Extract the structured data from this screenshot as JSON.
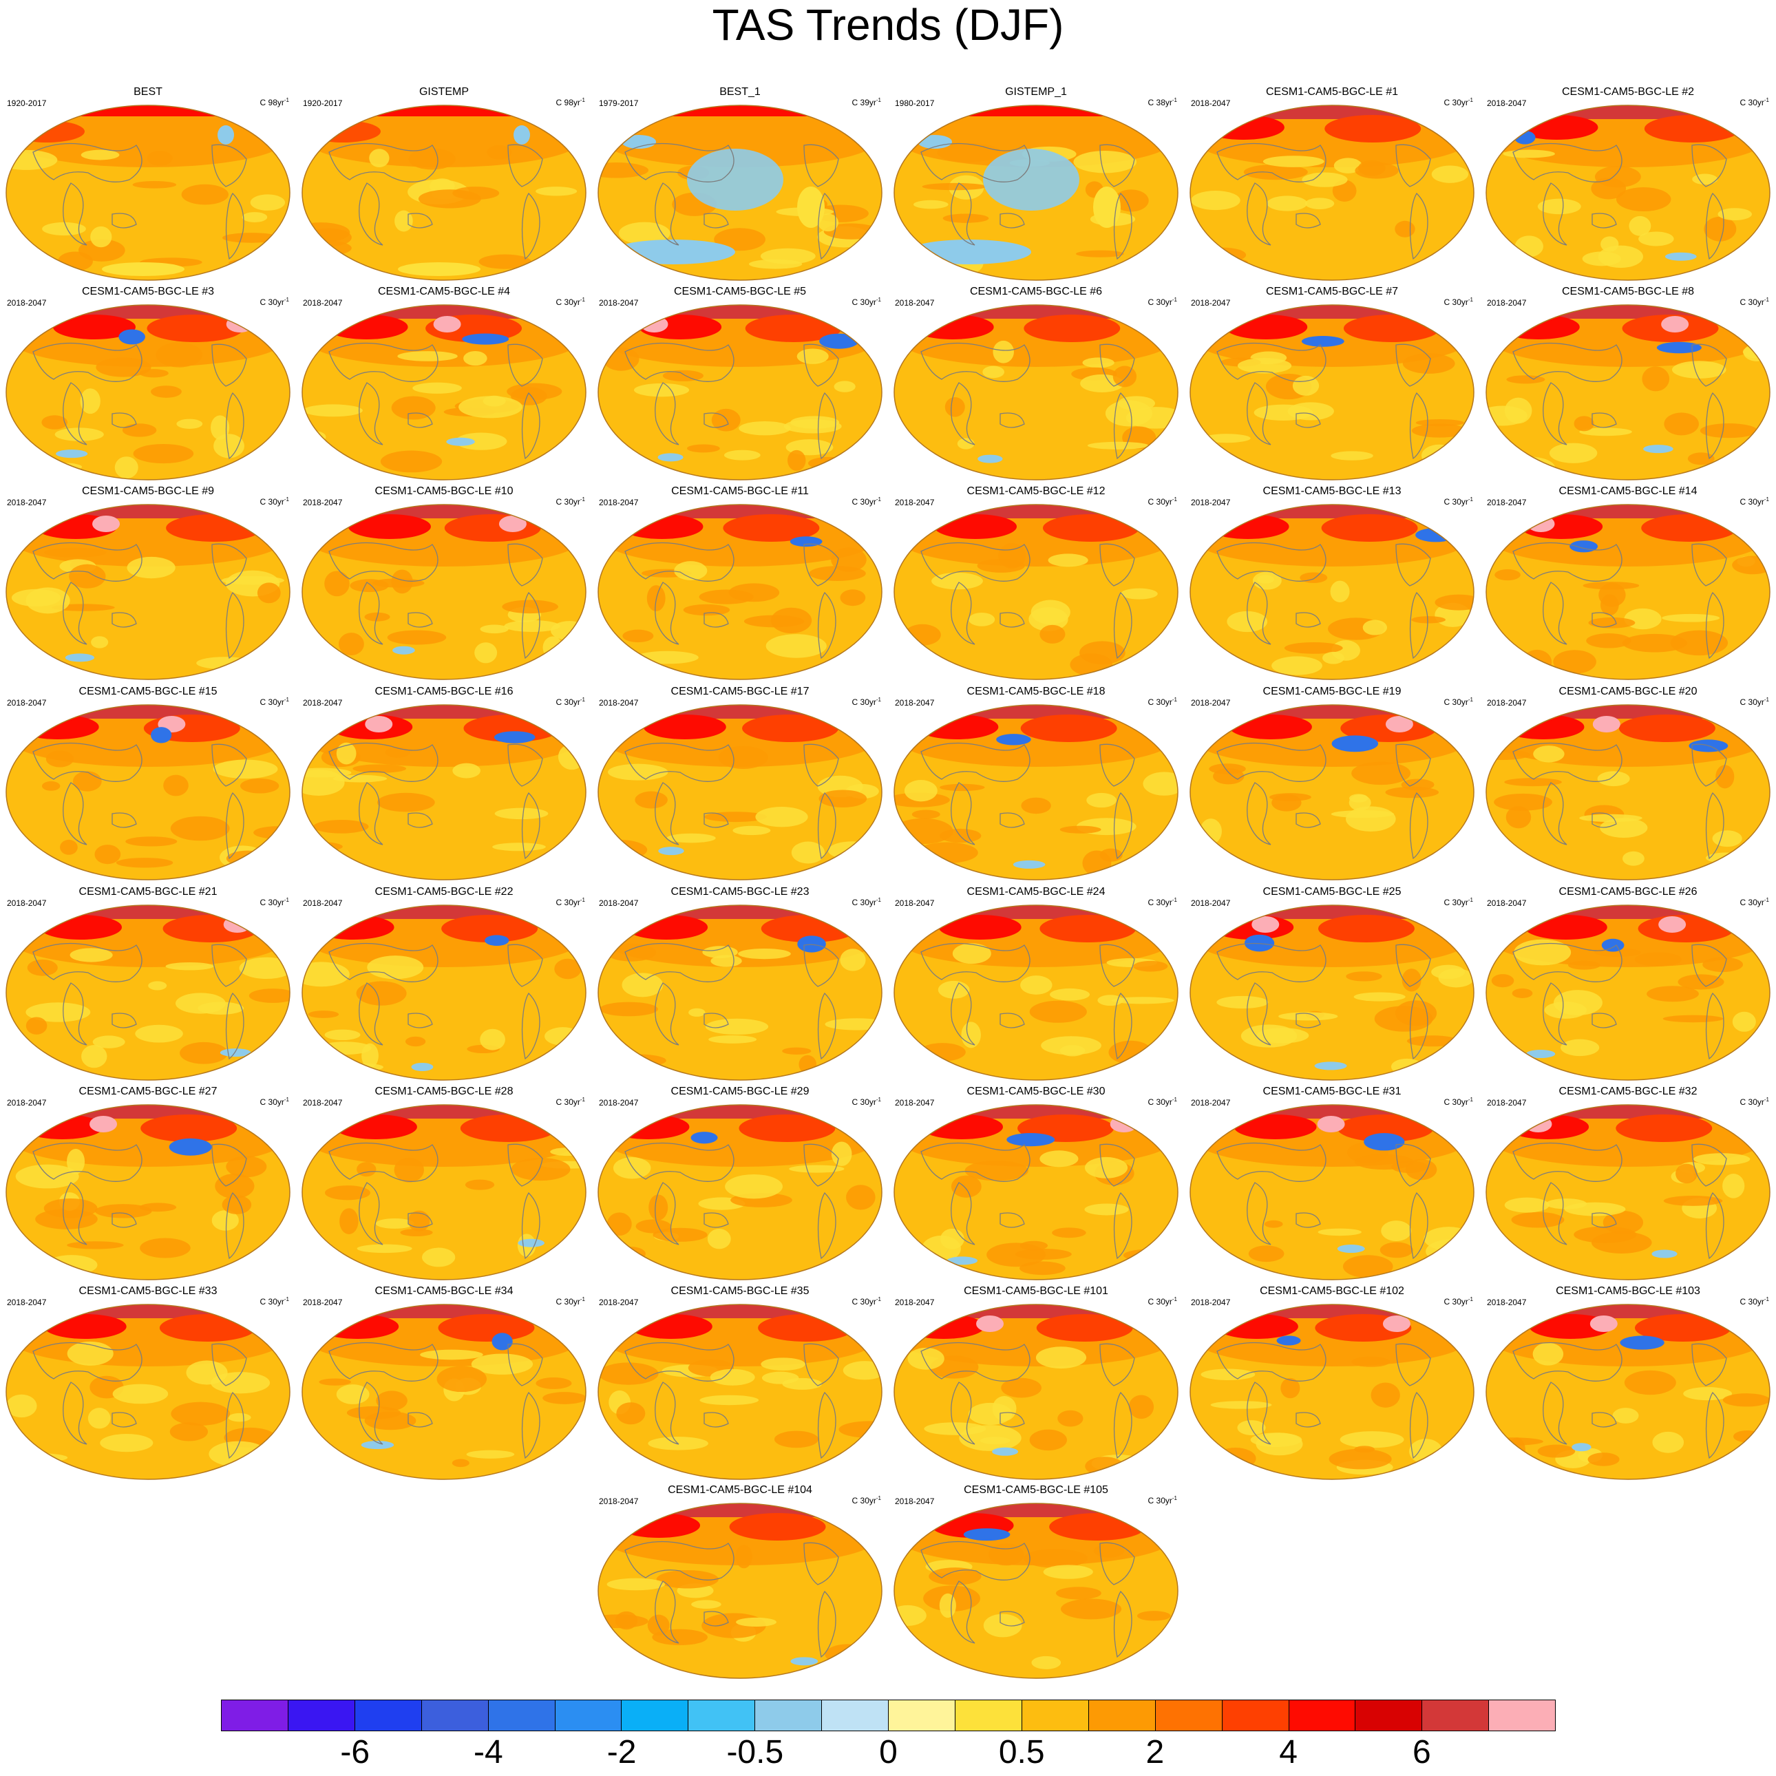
{
  "title": "TAS Trends (DJF)",
  "panels": [
    {
      "title": "BEST",
      "period": "1920-2017",
      "unit": "C 98yr",
      "unit_exp": "-1",
      "pattern": "obs_long"
    },
    {
      "title": "GISTEMP",
      "period": "1920-2017",
      "unit": "C 98yr",
      "unit_exp": "-1",
      "pattern": "obs_long"
    },
    {
      "title": "BEST_1",
      "period": "1979-2017",
      "unit": "C 39yr",
      "unit_exp": "-1",
      "pattern": "obs_short"
    },
    {
      "title": "GISTEMP_1",
      "period": "1980-2017",
      "unit": "C 38yr",
      "unit_exp": "-1",
      "pattern": "obs_short"
    },
    {
      "title": "CESM1-CAM5-BGC-LE #1",
      "period": "2018-2047",
      "unit": "C 30yr",
      "unit_exp": "-1",
      "pattern": "model"
    },
    {
      "title": "CESM1-CAM5-BGC-LE #2",
      "period": "2018-2047",
      "unit": "C 30yr",
      "unit_exp": "-1",
      "pattern": "model"
    },
    {
      "title": "CESM1-CAM5-BGC-LE #3",
      "period": "2018-2047",
      "unit": "C 30yr",
      "unit_exp": "-1",
      "pattern": "model"
    },
    {
      "title": "CESM1-CAM5-BGC-LE #4",
      "period": "2018-2047",
      "unit": "C 30yr",
      "unit_exp": "-1",
      "pattern": "model"
    },
    {
      "title": "CESM1-CAM5-BGC-LE #5",
      "period": "2018-2047",
      "unit": "C 30yr",
      "unit_exp": "-1",
      "pattern": "model"
    },
    {
      "title": "CESM1-CAM5-BGC-LE #6",
      "period": "2018-2047",
      "unit": "C 30yr",
      "unit_exp": "-1",
      "pattern": "model"
    },
    {
      "title": "CESM1-CAM5-BGC-LE #7",
      "period": "2018-2047",
      "unit": "C 30yr",
      "unit_exp": "-1",
      "pattern": "model"
    },
    {
      "title": "CESM1-CAM5-BGC-LE #8",
      "period": "2018-2047",
      "unit": "C 30yr",
      "unit_exp": "-1",
      "pattern": "model"
    },
    {
      "title": "CESM1-CAM5-BGC-LE #9",
      "period": "2018-2047",
      "unit": "C 30yr",
      "unit_exp": "-1",
      "pattern": "model"
    },
    {
      "title": "CESM1-CAM5-BGC-LE #10",
      "period": "2018-2047",
      "unit": "C 30yr",
      "unit_exp": "-1",
      "pattern": "model"
    },
    {
      "title": "CESM1-CAM5-BGC-LE #11",
      "period": "2018-2047",
      "unit": "C 30yr",
      "unit_exp": "-1",
      "pattern": "model"
    },
    {
      "title": "CESM1-CAM5-BGC-LE #12",
      "period": "2018-2047",
      "unit": "C 30yr",
      "unit_exp": "-1",
      "pattern": "model"
    },
    {
      "title": "CESM1-CAM5-BGC-LE #13",
      "period": "2018-2047",
      "unit": "C 30yr",
      "unit_exp": "-1",
      "pattern": "model"
    },
    {
      "title": "CESM1-CAM5-BGC-LE #14",
      "period": "2018-2047",
      "unit": "C 30yr",
      "unit_exp": "-1",
      "pattern": "model"
    },
    {
      "title": "CESM1-CAM5-BGC-LE #15",
      "period": "2018-2047",
      "unit": "C 30yr",
      "unit_exp": "-1",
      "pattern": "model"
    },
    {
      "title": "CESM1-CAM5-BGC-LE #16",
      "period": "2018-2047",
      "unit": "C 30yr",
      "unit_exp": "-1",
      "pattern": "model"
    },
    {
      "title": "CESM1-CAM5-BGC-LE #17",
      "period": "2018-2047",
      "unit": "C 30yr",
      "unit_exp": "-1",
      "pattern": "model"
    },
    {
      "title": "CESM1-CAM5-BGC-LE #18",
      "period": "2018-2047",
      "unit": "C 30yr",
      "unit_exp": "-1",
      "pattern": "model"
    },
    {
      "title": "CESM1-CAM5-BGC-LE #19",
      "period": "2018-2047",
      "unit": "C 30yr",
      "unit_exp": "-1",
      "pattern": "model"
    },
    {
      "title": "CESM1-CAM5-BGC-LE #20",
      "period": "2018-2047",
      "unit": "C 30yr",
      "unit_exp": "-1",
      "pattern": "model"
    },
    {
      "title": "CESM1-CAM5-BGC-LE #21",
      "period": "2018-2047",
      "unit": "C 30yr",
      "unit_exp": "-1",
      "pattern": "model"
    },
    {
      "title": "CESM1-CAM5-BGC-LE #22",
      "period": "2018-2047",
      "unit": "C 30yr",
      "unit_exp": "-1",
      "pattern": "model"
    },
    {
      "title": "CESM1-CAM5-BGC-LE #23",
      "period": "2018-2047",
      "unit": "C 30yr",
      "unit_exp": "-1",
      "pattern": "model"
    },
    {
      "title": "CESM1-CAM5-BGC-LE #24",
      "period": "2018-2047",
      "unit": "C 30yr",
      "unit_exp": "-1",
      "pattern": "model"
    },
    {
      "title": "CESM1-CAM5-BGC-LE #25",
      "period": "2018-2047",
      "unit": "C 30yr",
      "unit_exp": "-1",
      "pattern": "model"
    },
    {
      "title": "CESM1-CAM5-BGC-LE #26",
      "period": "2018-2047",
      "unit": "C 30yr",
      "unit_exp": "-1",
      "pattern": "model"
    },
    {
      "title": "CESM1-CAM5-BGC-LE #27",
      "period": "2018-2047",
      "unit": "C 30yr",
      "unit_exp": "-1",
      "pattern": "model"
    },
    {
      "title": "CESM1-CAM5-BGC-LE #28",
      "period": "2018-2047",
      "unit": "C 30yr",
      "unit_exp": "-1",
      "pattern": "model"
    },
    {
      "title": "CESM1-CAM5-BGC-LE #29",
      "period": "2018-2047",
      "unit": "C 30yr",
      "unit_exp": "-1",
      "pattern": "model"
    },
    {
      "title": "CESM1-CAM5-BGC-LE #30",
      "period": "2018-2047",
      "unit": "C 30yr",
      "unit_exp": "-1",
      "pattern": "model"
    },
    {
      "title": "CESM1-CAM5-BGC-LE #31",
      "period": "2018-2047",
      "unit": "C 30yr",
      "unit_exp": "-1",
      "pattern": "model"
    },
    {
      "title": "CESM1-CAM5-BGC-LE #32",
      "period": "2018-2047",
      "unit": "C 30yr",
      "unit_exp": "-1",
      "pattern": "model"
    },
    {
      "title": "CESM1-CAM5-BGC-LE #33",
      "period": "2018-2047",
      "unit": "C 30yr",
      "unit_exp": "-1",
      "pattern": "model"
    },
    {
      "title": "CESM1-CAM5-BGC-LE #34",
      "period": "2018-2047",
      "unit": "C 30yr",
      "unit_exp": "-1",
      "pattern": "model"
    },
    {
      "title": "CESM1-CAM5-BGC-LE #35",
      "period": "2018-2047",
      "unit": "C 30yr",
      "unit_exp": "-1",
      "pattern": "model"
    },
    {
      "title": "CESM1-CAM5-BGC-LE #101",
      "period": "2018-2047",
      "unit": "C 30yr",
      "unit_exp": "-1",
      "pattern": "model"
    },
    {
      "title": "CESM1-CAM5-BGC-LE #102",
      "period": "2018-2047",
      "unit": "C 30yr",
      "unit_exp": "-1",
      "pattern": "model"
    },
    {
      "title": "CESM1-CAM5-BGC-LE #103",
      "period": "2018-2047",
      "unit": "C 30yr",
      "unit_exp": "-1",
      "pattern": "model"
    },
    {
      "title": "CESM1-CAM5-BGC-LE #104",
      "period": "2018-2047",
      "unit": "C 30yr",
      "unit_exp": "-1",
      "pattern": "model"
    },
    {
      "title": "CESM1-CAM5-BGC-LE #105",
      "period": "2018-2047",
      "unit": "C 30yr",
      "unit_exp": "-1",
      "pattern": "model"
    }
  ],
  "colorbar": {
    "colors": [
      "#7f1de6",
      "#3a16f2",
      "#1f3ff0",
      "#3c5fdd",
      "#2f73e8",
      "#2b8ef2",
      "#0aaff7",
      "#41c2f5",
      "#8ecbea",
      "#bfe2f5",
      "#fff49a",
      "#fde13a",
      "#fdbd10",
      "#fd9a04",
      "#fe7202",
      "#fe4001",
      "#fe0b01",
      "#d80202",
      "#d33838",
      "#fcaeb6"
    ],
    "labels": [
      "-6",
      "-4",
      "-2",
      "-0.5",
      "0",
      "0.5",
      "2",
      "4",
      "6"
    ]
  },
  "palette": {
    "base": "#fdbd10",
    "warm": "#fd9a04",
    "hot": "#fe4001",
    "hotter": "#fe0b01",
    "arctic": "#d33838",
    "extreme": "#fcaeb6",
    "light": "#fde13a",
    "cool": "#8ecbea",
    "cold": "#2f73e8",
    "coast": "#7d7d7d",
    "border": "#b3761c"
  }
}
